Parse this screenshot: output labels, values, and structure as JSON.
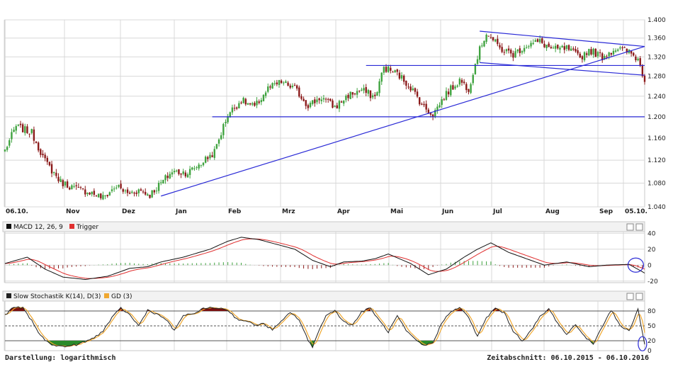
{
  "footer": {
    "display_mode": "Darstellung: logarithmisch",
    "time_range": "Zeitabschnitt: 06.10.2015 - 06.10.2016"
  },
  "colors": {
    "up": "#3fa33f",
    "down": "#8b1a1a",
    "trendline": "#2a2ad6",
    "macd": "#111111",
    "trigger": "#e03030",
    "stoch_k": "#222222",
    "stoch_d": "#f0a830",
    "overbought_fill": "#7a1010",
    "oversold_fill": "#2a8a2a",
    "grid": "#d8d8d8"
  },
  "chart_data": [
    {
      "type": "candlestick",
      "x_labels": [
        "06.10.",
        "Nov",
        "Dez",
        "Jan",
        "Feb",
        "Mrz",
        "Apr",
        "Mai",
        "Jun",
        "Jul",
        "Aug",
        "Sep",
        "05.10."
      ],
      "y_ticks": [
        "1.400",
        "1.360",
        "1.320",
        "1.280",
        "1.240",
        "1.200",
        "1.160",
        "1.120",
        "1.080",
        "1.040"
      ],
      "ylim": [
        1.04,
        1.4
      ],
      "scale": "log",
      "grid": true,
      "anchors": [
        [
          0,
          1.138
        ],
        [
          5,
          1.182
        ],
        [
          12,
          1.17
        ],
        [
          18,
          1.118
        ],
        [
          25,
          1.082
        ],
        [
          32,
          1.07
        ],
        [
          38,
          1.065
        ],
        [
          44,
          1.055
        ],
        [
          50,
          1.075
        ],
        [
          55,
          1.062
        ],
        [
          60,
          1.068
        ],
        [
          65,
          1.06
        ],
        [
          70,
          1.08
        ],
        [
          75,
          1.1
        ],
        [
          82,
          1.098
        ],
        [
          88,
          1.115
        ],
        [
          94,
          1.135
        ],
        [
          100,
          1.205
        ],
        [
          106,
          1.232
        ],
        [
          112,
          1.218
        ],
        [
          118,
          1.255
        ],
        [
          124,
          1.268
        ],
        [
          130,
          1.255
        ],
        [
          136,
          1.222
        ],
        [
          142,
          1.238
        ],
        [
          148,
          1.218
        ],
        [
          154,
          1.242
        ],
        [
          160,
          1.252
        ],
        [
          166,
          1.238
        ],
        [
          170,
          1.298
        ],
        [
          176,
          1.285
        ],
        [
          182,
          1.258
        ],
        [
          188,
          1.218
        ],
        [
          192,
          1.205
        ],
        [
          198,
          1.245
        ],
        [
          204,
          1.272
        ],
        [
          208,
          1.255
        ],
        [
          212,
          1.322
        ],
        [
          216,
          1.372
        ],
        [
          222,
          1.338
        ],
        [
          228,
          1.325
        ],
        [
          234,
          1.345
        ],
        [
          240,
          1.352
        ],
        [
          246,
          1.335
        ],
        [
          252,
          1.338
        ],
        [
          258,
          1.318
        ],
        [
          262,
          1.335
        ],
        [
          268,
          1.32
        ],
        [
          274,
          1.338
        ],
        [
          280,
          1.33
        ],
        [
          284,
          1.315
        ],
        [
          287,
          1.272
        ]
      ],
      "trendlines": [
        {
          "from": [
            70,
            1.058
          ],
          "to": [
            287,
            1.342
          ]
        },
        {
          "from": [
            93,
            1.2
          ],
          "to": [
            287,
            1.2
          ]
        },
        {
          "from": [
            162,
            1.302
          ],
          "to": [
            287,
            1.302
          ]
        },
        {
          "from": [
            213,
            1.375
          ],
          "to": [
            287,
            1.342
          ]
        },
        {
          "from": [
            213,
            1.308
          ],
          "to": [
            287,
            1.282
          ]
        }
      ]
    },
    {
      "type": "line",
      "legend": [
        {
          "name": "MACD 12, 26, 9"
        },
        {
          "name": "Trigger"
        }
      ],
      "y_ticks": [
        "40",
        "20",
        "0",
        "-20"
      ],
      "ylim": [
        -22,
        42
      ],
      "macd_anchors": [
        [
          0,
          2
        ],
        [
          10,
          10
        ],
        [
          18,
          -5
        ],
        [
          26,
          -15
        ],
        [
          36,
          -18
        ],
        [
          46,
          -14
        ],
        [
          56,
          -4
        ],
        [
          64,
          -2
        ],
        [
          70,
          4
        ],
        [
          80,
          10
        ],
        [
          92,
          20
        ],
        [
          100,
          30
        ],
        [
          106,
          35
        ],
        [
          114,
          32
        ],
        [
          122,
          26
        ],
        [
          130,
          20
        ],
        [
          138,
          6
        ],
        [
          146,
          -2
        ],
        [
          152,
          4
        ],
        [
          160,
          5
        ],
        [
          166,
          8
        ],
        [
          172,
          14
        ],
        [
          182,
          2
        ],
        [
          190,
          -12
        ],
        [
          198,
          -5
        ],
        [
          206,
          10
        ],
        [
          212,
          20
        ],
        [
          218,
          28
        ],
        [
          226,
          16
        ],
        [
          234,
          8
        ],
        [
          242,
          0
        ],
        [
          252,
          4
        ],
        [
          262,
          -2
        ],
        [
          270,
          0
        ],
        [
          280,
          1
        ],
        [
          287,
          -10
        ]
      ],
      "circle_at": [
        283,
        0
      ]
    },
    {
      "type": "line",
      "legend": [
        {
          "name": "Slow Stochastik K(14), D(3)"
        },
        {
          "name": "GD (3)"
        }
      ],
      "y_ticks": [
        "80",
        "50",
        "20",
        "0"
      ],
      "ylim": [
        0,
        100
      ],
      "ref_lines": [
        80,
        50,
        20
      ],
      "k_anchors": [
        [
          0,
          72
        ],
        [
          4,
          88
        ],
        [
          8,
          86
        ],
        [
          12,
          60
        ],
        [
          16,
          30
        ],
        [
          20,
          14
        ],
        [
          26,
          8
        ],
        [
          32,
          12
        ],
        [
          36,
          18
        ],
        [
          40,
          26
        ],
        [
          44,
          40
        ],
        [
          48,
          66
        ],
        [
          52,
          86
        ],
        [
          56,
          72
        ],
        [
          60,
          50
        ],
        [
          64,
          82
        ],
        [
          68,
          74
        ],
        [
          72,
          64
        ],
        [
          76,
          40
        ],
        [
          80,
          72
        ],
        [
          84,
          72
        ],
        [
          88,
          84
        ],
        [
          92,
          86
        ],
        [
          96,
          86
        ],
        [
          100,
          82
        ],
        [
          104,
          64
        ],
        [
          108,
          60
        ],
        [
          112,
          52
        ],
        [
          116,
          54
        ],
        [
          120,
          42
        ],
        [
          124,
          58
        ],
        [
          128,
          78
        ],
        [
          132,
          62
        ],
        [
          136,
          20
        ],
        [
          138,
          8
        ],
        [
          140,
          32
        ],
        [
          144,
          70
        ],
        [
          148,
          82
        ],
        [
          152,
          58
        ],
        [
          156,
          52
        ],
        [
          160,
          78
        ],
        [
          164,
          86
        ],
        [
          168,
          60
        ],
        [
          172,
          38
        ],
        [
          176,
          70
        ],
        [
          180,
          40
        ],
        [
          184,
          22
        ],
        [
          188,
          10
        ],
        [
          192,
          16
        ],
        [
          196,
          56
        ],
        [
          200,
          80
        ],
        [
          204,
          86
        ],
        [
          208,
          68
        ],
        [
          212,
          28
        ],
        [
          216,
          66
        ],
        [
          220,
          86
        ],
        [
          224,
          76
        ],
        [
          228,
          40
        ],
        [
          232,
          20
        ],
        [
          236,
          40
        ],
        [
          240,
          68
        ],
        [
          244,
          84
        ],
        [
          248,
          56
        ],
        [
          252,
          32
        ],
        [
          256,
          54
        ],
        [
          260,
          28
        ],
        [
          264,
          14
        ],
        [
          268,
          50
        ],
        [
          272,
          82
        ],
        [
          276,
          50
        ],
        [
          280,
          40
        ],
        [
          284,
          84
        ],
        [
          287,
          12
        ]
      ],
      "circle_at": [
        286,
        14
      ]
    }
  ]
}
